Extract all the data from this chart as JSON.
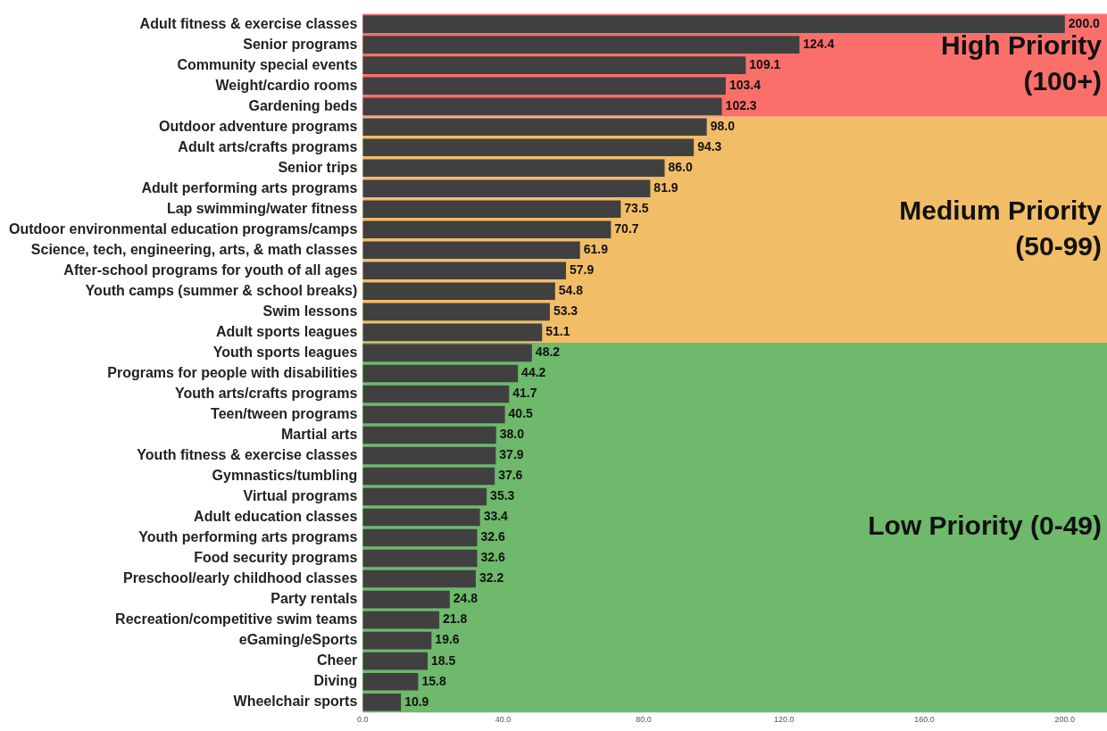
{
  "chart_data": {
    "type": "bar",
    "orientation": "horizontal",
    "categories": [
      "Adult fitness & exercise classes",
      "Senior programs",
      "Community special events",
      "Weight/cardio rooms",
      "Gardening beds",
      "Outdoor adventure programs",
      "Adult arts/crafts programs",
      "Senior trips",
      "Adult performing arts programs",
      "Lap swimming/water fitness",
      "Outdoor environmental education programs/camps",
      "Science, tech, engineering, arts, & math classes",
      "After-school programs for youth of all ages",
      "Youth camps (summer & school breaks)",
      "Swim lessons",
      "Adult sports leagues",
      "Youth sports leagues",
      "Programs for people with disabilities",
      "Youth arts/crafts programs",
      "Teen/tween programs",
      "Martial arts",
      "Youth fitness & exercise classes",
      "Gymnastics/tumbling",
      "Virtual programs",
      "Adult education classes",
      "Youth performing arts programs",
      "Food security programs",
      "Preschool/early childhood classes",
      "Party rentals",
      "Recreation/competitive swim teams",
      "eGaming/eSports",
      "Cheer",
      "Diving",
      "Wheelchair sports"
    ],
    "values": [
      200.0,
      124.4,
      109.1,
      103.4,
      102.3,
      98.0,
      94.3,
      86.0,
      81.9,
      73.5,
      70.7,
      61.9,
      57.9,
      54.8,
      53.3,
      51.1,
      48.2,
      44.2,
      41.7,
      40.5,
      38.0,
      37.9,
      37.6,
      35.3,
      33.4,
      32.6,
      32.6,
      32.2,
      24.8,
      21.8,
      19.6,
      18.5,
      15.8,
      10.9
    ],
    "value_labels": [
      "200.0",
      "124.4",
      "109.1",
      "103.4",
      "102.3",
      "98.0",
      "94.3",
      "86.0",
      "81.9",
      "73.5",
      "70.7",
      "61.9",
      "57.9",
      "54.8",
      "53.3",
      "51.1",
      "48.2",
      "44.2",
      "41.7",
      "40.5",
      "38.0",
      "37.9",
      "37.6",
      "35.3",
      "33.4",
      "32.6",
      "32.6",
      "32.2",
      "24.8",
      "21.8",
      "19.6",
      "18.5",
      "15.8",
      "10.9"
    ],
    "color": "#404040",
    "xlim": [
      0,
      212
    ],
    "xticks": [
      {
        "value": 0,
        "label": "0.0"
      },
      {
        "value": 40,
        "label": "40.0"
      },
      {
        "value": 80,
        "label": "80.0"
      },
      {
        "value": 120,
        "label": "120.0"
      },
      {
        "value": 160,
        "label": "160.0"
      },
      {
        "value": 200,
        "label": "200.0"
      }
    ],
    "grid": false,
    "bands": [
      {
        "axis": "y",
        "from": "Adult fitness & exercise classes",
        "to": "Gardening beds",
        "label": "High Priority\n(100+)",
        "color": "#fb6f6b"
      },
      {
        "axis": "y",
        "from": "Outdoor adventure programs",
        "to": "Adult sports leagues",
        "label": "Medium Priority\n(50-99)",
        "color": "#f2bd67"
      },
      {
        "axis": "y",
        "from": "Youth sports leagues",
        "to": "Wheelchair sports",
        "label": "Low Priority (0-49)",
        "color": "#6eb96c"
      }
    ]
  }
}
